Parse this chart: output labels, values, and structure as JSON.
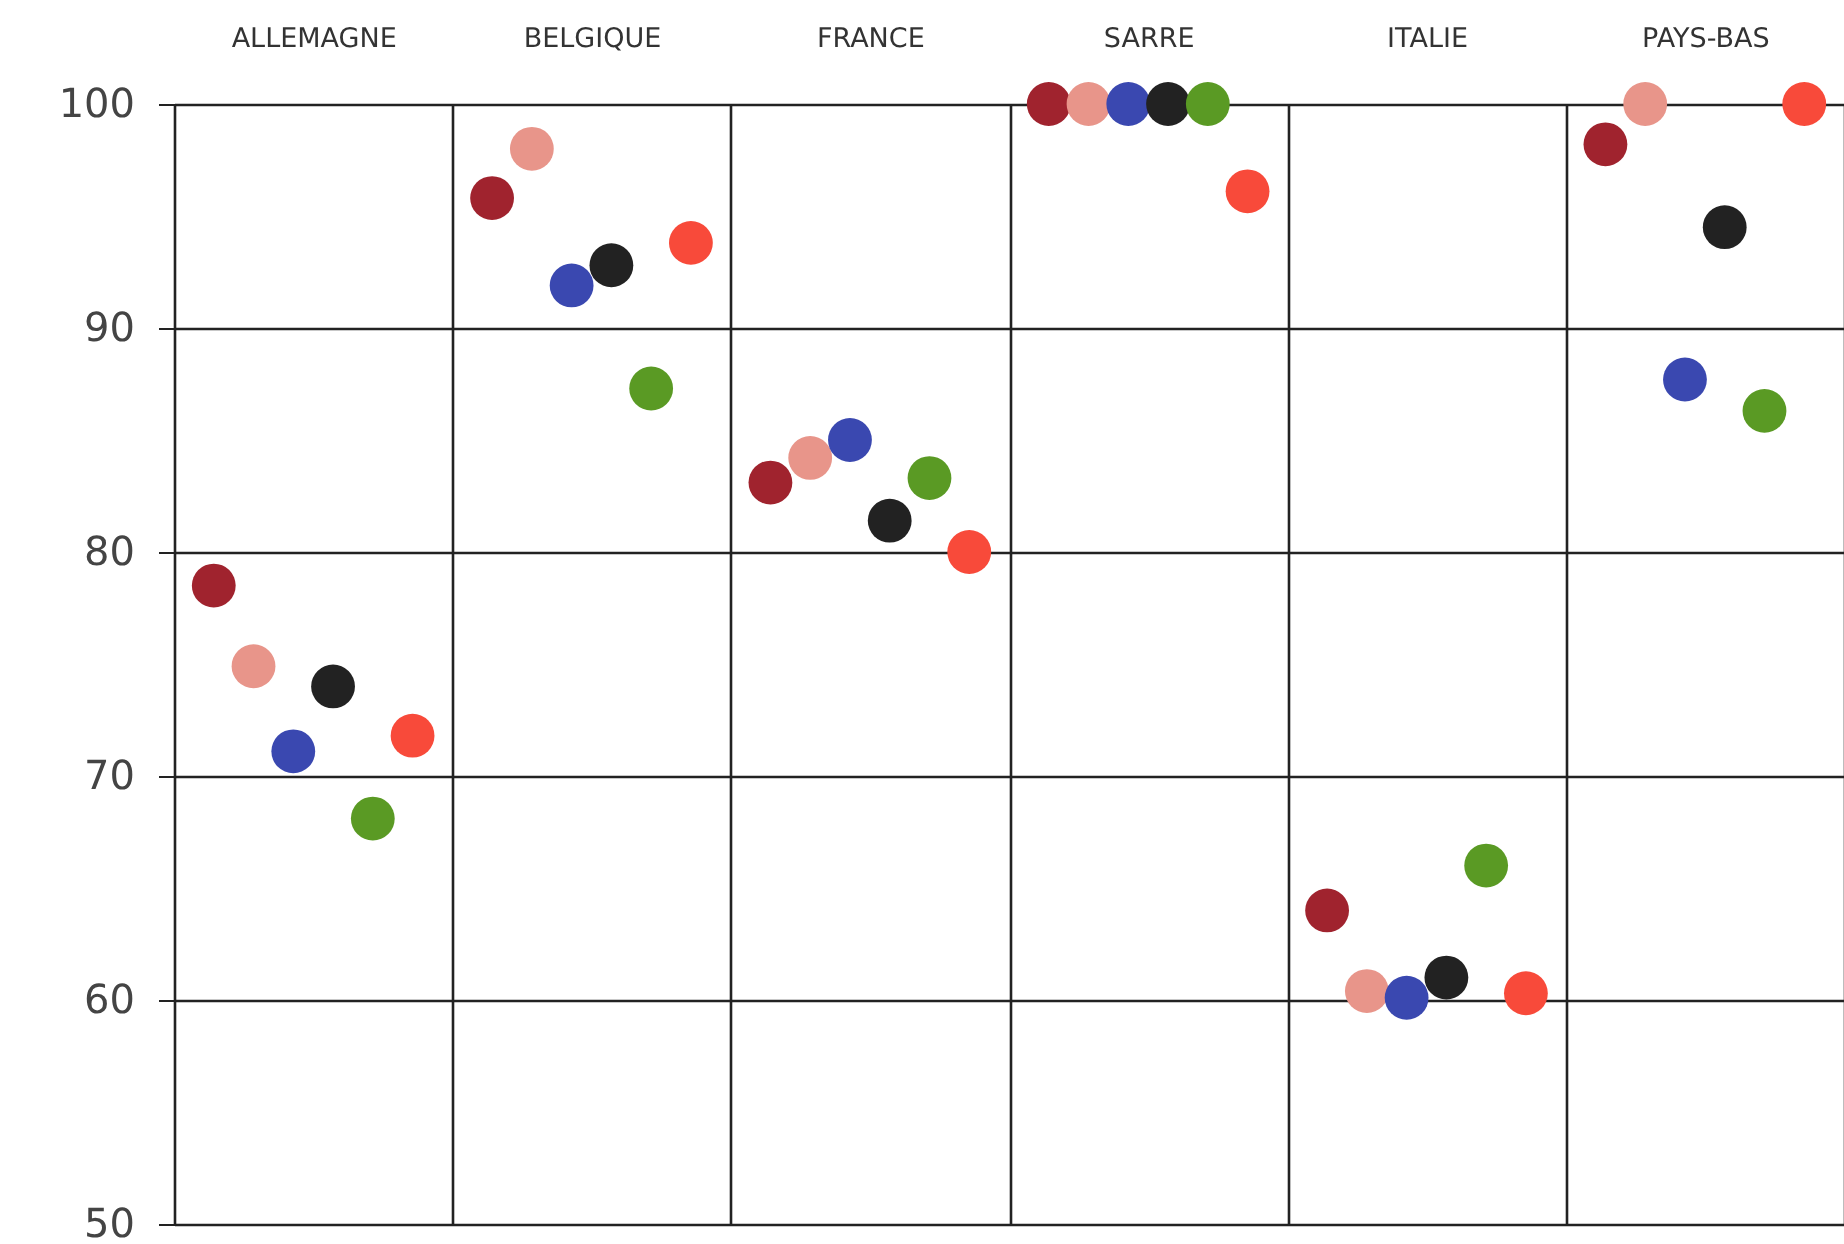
{
  "chart_data": {
    "type": "scatter",
    "categories": [
      "ALLEMAGNE",
      "BELGIQUE",
      "FRANCE",
      "SARRE",
      "ITALIE",
      "PAYS-BAS"
    ],
    "series": [
      {
        "color": "#a0232e",
        "values": [
          78.5,
          95.8,
          83.1,
          100,
          64.0,
          98.2
        ]
      },
      {
        "color": "#e8958a",
        "values": [
          74.9,
          98.0,
          84.2,
          100,
          60.4,
          100
        ]
      },
      {
        "color": "#3a48b0",
        "values": [
          71.1,
          91.9,
          85.0,
          100,
          60.1,
          87.7
        ]
      },
      {
        "color": "#222222",
        "values": [
          74.0,
          92.8,
          81.4,
          100,
          61.0,
          94.5
        ]
      },
      {
        "color": "#5a9a24",
        "values": [
          68.1,
          87.3,
          83.3,
          100,
          66.0,
          86.3
        ]
      },
      {
        "color": "#f84a3a",
        "values": [
          71.8,
          93.8,
          80.0,
          96.1,
          60.3,
          100
        ]
      }
    ],
    "ylim": [
      50,
      100
    ],
    "yticks": [
      50,
      60,
      70,
      80,
      90,
      100
    ],
    "grid": true,
    "marker": "circle"
  }
}
